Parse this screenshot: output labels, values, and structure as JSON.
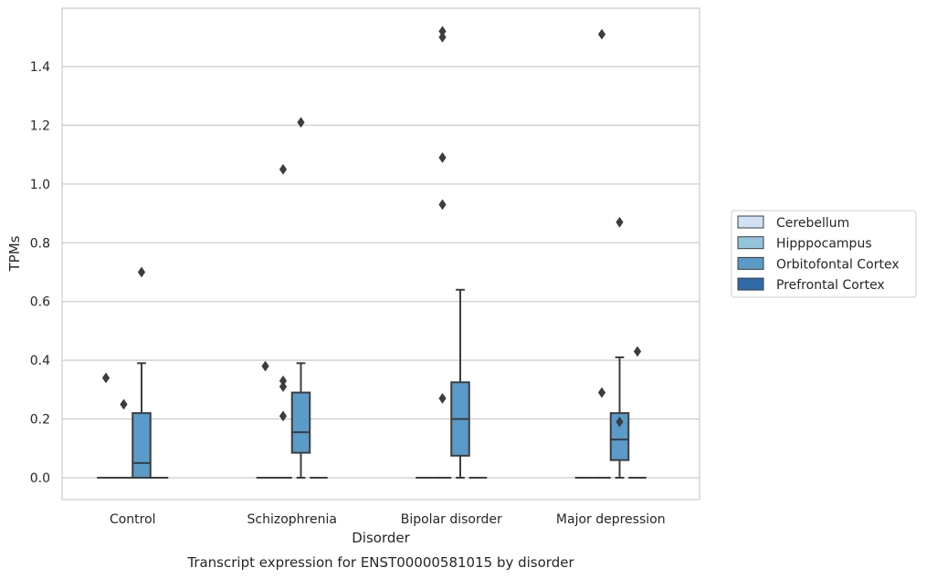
{
  "chart_data": {
    "type": "box",
    "title": "",
    "caption": "Transcript expression for ENST00000581015 by disorder",
    "xlabel": "Disorder",
    "ylabel": "TPMs",
    "ylim": [
      -0.07,
      1.6
    ],
    "yticks": [
      "0.0",
      "0.2",
      "0.4",
      "0.6",
      "0.8",
      "1.0",
      "1.2",
      "1.4"
    ],
    "grid": "horizontal",
    "legend_position": "right",
    "categories": [
      "Control",
      "Schizophrenia",
      "Bipolar disorder",
      "Major depression"
    ],
    "series": [
      {
        "name": "Cerebellum",
        "color": "#cfe1f2",
        "boxes": [
          {
            "q1": 0,
            "median": 0,
            "q3": 0,
            "whisker_low": 0,
            "whisker_high": 0,
            "outliers": [
              0.34
            ]
          },
          {
            "q1": 0,
            "median": 0,
            "q3": 0,
            "whisker_low": 0,
            "whisker_high": 0,
            "outliers": [
              0.38
            ]
          },
          {
            "q1": 0,
            "median": 0,
            "q3": 0,
            "whisker_low": 0,
            "whisker_high": 0,
            "outliers": []
          },
          {
            "q1": 0,
            "median": 0,
            "q3": 0,
            "whisker_low": 0,
            "whisker_high": 0,
            "outliers": []
          }
        ]
      },
      {
        "name": "Hipppocampus",
        "color": "#93c4de",
        "boxes": [
          {
            "q1": 0,
            "median": 0,
            "q3": 0,
            "whisker_low": 0,
            "whisker_high": 0,
            "outliers": [
              0.25
            ]
          },
          {
            "q1": 0,
            "median": 0,
            "q3": 0,
            "whisker_low": 0,
            "whisker_high": 0,
            "outliers": [
              0.21,
              0.31,
              0.33,
              1.05
            ]
          },
          {
            "q1": 0,
            "median": 0,
            "q3": 0,
            "whisker_low": 0,
            "whisker_high": 0,
            "outliers": [
              0.27,
              0.93,
              1.09,
              1.5,
              1.52
            ]
          },
          {
            "q1": 0,
            "median": 0,
            "q3": 0,
            "whisker_low": 0,
            "whisker_high": 0,
            "outliers": [
              0.29,
              1.51
            ]
          }
        ]
      },
      {
        "name": "Orbitofontal Cortex",
        "color": "#5a9bc9",
        "boxes": [
          {
            "q1": 0,
            "median": 0.05,
            "q3": 0.22,
            "whisker_low": 0,
            "whisker_high": 0.39,
            "outliers": [
              0.7
            ]
          },
          {
            "q1": 0.085,
            "median": 0.155,
            "q3": 0.29,
            "whisker_low": 0,
            "whisker_high": 0.39,
            "outliers": [
              1.21
            ]
          },
          {
            "q1": 0.075,
            "median": 0.2,
            "q3": 0.325,
            "whisker_low": 0,
            "whisker_high": 0.64,
            "outliers": []
          },
          {
            "q1": 0.06,
            "median": 0.13,
            "q3": 0.22,
            "whisker_low": 0,
            "whisker_high": 0.41,
            "outliers": [
              0.19,
              0.87
            ]
          }
        ]
      },
      {
        "name": "Prefrontal Cortex",
        "color": "#2f6ba9",
        "boxes": [
          {
            "q1": 0,
            "median": 0,
            "q3": 0,
            "whisker_low": 0,
            "whisker_high": 0,
            "outliers": []
          },
          {
            "q1": 0,
            "median": 0,
            "q3": 0,
            "whisker_low": 0,
            "whisker_high": 0,
            "outliers": []
          },
          {
            "q1": 0,
            "median": 0,
            "q3": 0,
            "whisker_low": 0,
            "whisker_high": 0,
            "outliers": []
          },
          {
            "q1": 0,
            "median": 0,
            "q3": 0,
            "whisker_low": 0,
            "whisker_high": 0,
            "outliers": [
              0.43
            ]
          }
        ]
      }
    ]
  }
}
